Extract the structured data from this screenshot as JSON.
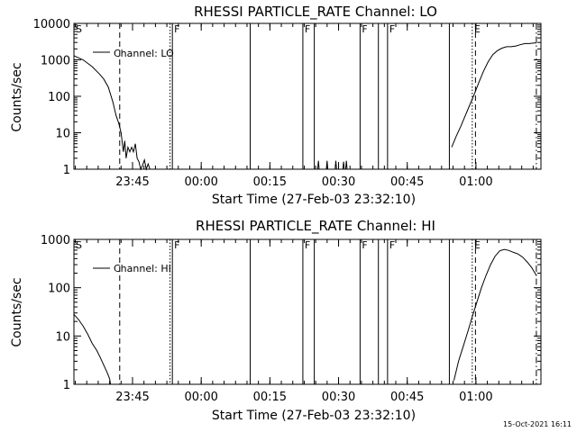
{
  "stamp": "15-Oct-2021 16:11",
  "chart_data": [
    {
      "type": "line",
      "title": "RHESSI PARTICLE_RATE Channel: LO",
      "xlabel": "Start Time (27-Feb-03 23:32:10)",
      "ylabel": "Counts/sec",
      "yscale": "log",
      "ylim": [
        1,
        10000
      ],
      "xlim": [
        0,
        102
      ],
      "xunit": "minutes after 23:32:10",
      "x_ticks": [
        {
          "v": 12.8,
          "label": "23:45"
        },
        {
          "v": 27.8,
          "label": "00:00"
        },
        {
          "v": 42.8,
          "label": "00:15"
        },
        {
          "v": 57.8,
          "label": "00:30"
        },
        {
          "v": 72.8,
          "label": "00:45"
        },
        {
          "v": 87.8,
          "label": "01:00"
        }
      ],
      "y_ticks": [
        {
          "v": 1,
          "label": "1"
        },
        {
          "v": 10,
          "label": "10"
        },
        {
          "v": 100,
          "label": "100"
        },
        {
          "v": 1000,
          "label": "1000"
        },
        {
          "v": 10000,
          "label": "10000"
        }
      ],
      "vlines": [
        {
          "x": 0,
          "style": "solid",
          "flag": "S"
        },
        {
          "x": 10,
          "style": "dashed",
          "flag": ""
        },
        {
          "x": 21,
          "style": "dotted",
          "flag": ""
        },
        {
          "x": 21.5,
          "style": "solid",
          "flag": "F"
        },
        {
          "x": 38.5,
          "style": "solid",
          "flag": ""
        },
        {
          "x": 50,
          "style": "solid",
          "flag": "F"
        },
        {
          "x": 52.5,
          "style": "solid",
          "flag": ""
        },
        {
          "x": 62.5,
          "style": "solid",
          "flag": "F"
        },
        {
          "x": 66.5,
          "style": "solid",
          "flag": ""
        },
        {
          "x": 68.5,
          "style": "solid",
          "flag": "F"
        },
        {
          "x": 82,
          "style": "solid",
          "flag": ""
        },
        {
          "x": 87,
          "style": "dotted",
          "flag": "E"
        },
        {
          "x": 87.7,
          "style": "dashed",
          "flag": ""
        },
        {
          "x": 101,
          "style": "dashdot",
          "flag": ""
        }
      ],
      "series": [
        {
          "name": "Channel: LO",
          "x": [
            0,
            2,
            4,
            5.5,
            6.5,
            7.5,
            8.5,
            9.2,
            9.8,
            10.3,
            10.8,
            11.1,
            11.4,
            11.8,
            12.2,
            12.6,
            13.0,
            13.4,
            13.8,
            14.2,
            14.6,
            15.0,
            15.4,
            15.8,
            16.2,
            16.6
          ],
          "y": [
            1300,
            1000,
            650,
            420,
            300,
            180,
            70,
            30,
            18,
            10,
            3,
            6,
            2,
            4,
            3,
            4,
            3,
            5,
            2,
            1.6,
            1,
            1.3,
            1.8,
            1,
            1.4,
            1
          ],
          "bursts": [
            {
              "x": 53.4,
              "y": 1.7
            },
            {
              "x": 55.3,
              "y": 1.7
            },
            {
              "x": 57.2,
              "y": 1.7
            },
            {
              "x": 58.9,
              "y": 1.6
            },
            {
              "x": 59.5,
              "y": 1.7
            }
          ],
          "tail_x": [
            82.5,
            83.5,
            84.5,
            85.5,
            86.5,
            87.5,
            88.5,
            89.5,
            90.5,
            91.5,
            92.5,
            93.5,
            94.5,
            95.5,
            96.5,
            97.5,
            98.5,
            99.5,
            100.5,
            101
          ],
          "tail_y": [
            4,
            8,
            15,
            30,
            60,
            120,
            250,
            500,
            900,
            1400,
            1800,
            2100,
            2300,
            2300,
            2400,
            2600,
            2800,
            2800,
            2900,
            2900
          ]
        }
      ]
    },
    {
      "type": "line",
      "title": "RHESSI PARTICLE_RATE Channel: HI",
      "xlabel": "Start Time (27-Feb-03 23:32:10)",
      "ylabel": "Counts/sec",
      "yscale": "log",
      "ylim": [
        1,
        1000
      ],
      "xlim": [
        0,
        102
      ],
      "xunit": "minutes after 23:32:10",
      "x_ticks": [
        {
          "v": 12.8,
          "label": "23:45"
        },
        {
          "v": 27.8,
          "label": "00:00"
        },
        {
          "v": 42.8,
          "label": "00:15"
        },
        {
          "v": 57.8,
          "label": "00:30"
        },
        {
          "v": 72.8,
          "label": "00:45"
        },
        {
          "v": 87.8,
          "label": "01:00"
        }
      ],
      "y_ticks": [
        {
          "v": 1,
          "label": "1"
        },
        {
          "v": 10,
          "label": "10"
        },
        {
          "v": 100,
          "label": "100"
        },
        {
          "v": 1000,
          "label": "1000"
        }
      ],
      "vlines": [
        {
          "x": 0,
          "style": "solid",
          "flag": "S"
        },
        {
          "x": 10,
          "style": "dashed",
          "flag": ""
        },
        {
          "x": 21,
          "style": "dotted",
          "flag": ""
        },
        {
          "x": 21.5,
          "style": "solid",
          "flag": "F"
        },
        {
          "x": 38.5,
          "style": "solid",
          "flag": ""
        },
        {
          "x": 50,
          "style": "solid",
          "flag": "F"
        },
        {
          "x": 52.5,
          "style": "solid",
          "flag": ""
        },
        {
          "x": 62.5,
          "style": "solid",
          "flag": "F"
        },
        {
          "x": 66.5,
          "style": "solid",
          "flag": ""
        },
        {
          "x": 68.5,
          "style": "solid",
          "flag": "F"
        },
        {
          "x": 82,
          "style": "solid",
          "flag": ""
        },
        {
          "x": 87,
          "style": "dotted",
          "flag": "E"
        },
        {
          "x": 87.7,
          "style": "dashed",
          "flag": ""
        },
        {
          "x": 101,
          "style": "dashdot",
          "flag": ""
        }
      ],
      "series": [
        {
          "name": "Channel: HI",
          "x": [
            0,
            1,
            2,
            3,
            4,
            5,
            5.8,
            6.5,
            7.2,
            7.8,
            8.0
          ],
          "y": [
            28,
            22,
            16,
            11,
            7,
            5,
            3.5,
            2.5,
            1.8,
            1.3,
            1
          ],
          "bursts": [],
          "tail_x": [
            83,
            84,
            85,
            86,
            87,
            88,
            89,
            90,
            91,
            92,
            93,
            94,
            95,
            96,
            97,
            98,
            99,
            100,
            101
          ],
          "tail_y": [
            1.2,
            3,
            6,
            12,
            25,
            50,
            100,
            180,
            300,
            450,
            580,
            620,
            590,
            540,
            500,
            430,
            340,
            260,
            180
          ]
        }
      ]
    }
  ]
}
